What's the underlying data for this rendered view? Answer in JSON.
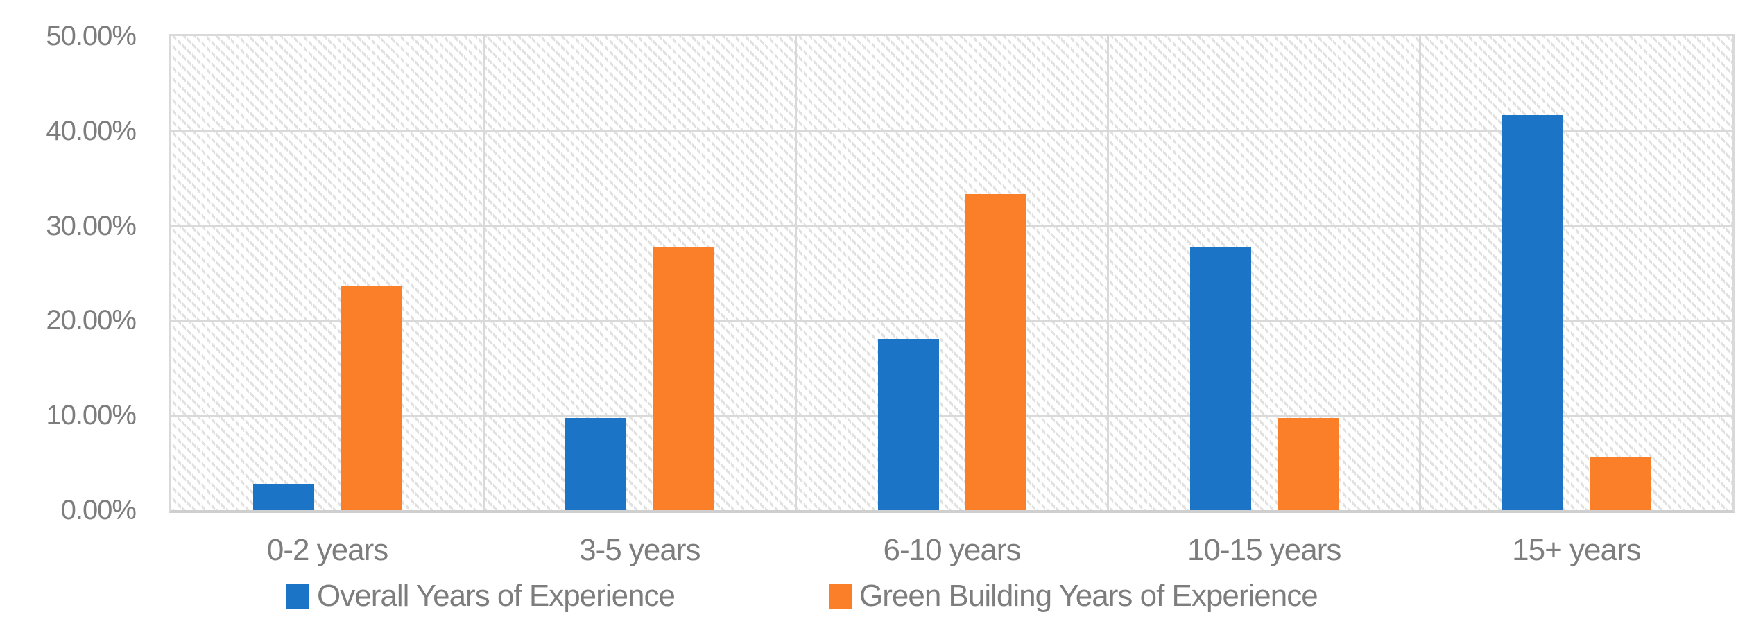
{
  "chart_data": {
    "type": "bar",
    "title": "",
    "xlabel": "",
    "ylabel": "",
    "categories": [
      "0-2 years",
      "3-5 years",
      "6-10 years",
      "10-15 years",
      "15+ years"
    ],
    "series": [
      {
        "name": "Overall Years of Experience",
        "color": "#1B74C5",
        "values": [
          2.78,
          9.72,
          18.06,
          27.78,
          41.67
        ]
      },
      {
        "name": "Green Building Years of Experience",
        "color": "#FB7E28",
        "values": [
          23.61,
          27.78,
          33.33,
          9.72,
          5.56
        ]
      }
    ],
    "value_unit": "percent",
    "ylim": [
      0,
      50
    ],
    "y_tick_step": 10,
    "y_tick_labels": [
      "0.00%",
      "10.00%",
      "20.00%",
      "30.00%",
      "40.00%",
      "50.00%"
    ],
    "grid": true,
    "plot_fill": "diagonal-hatch",
    "legend_position": "bottom"
  },
  "colors": {
    "background": "#FFFFFF",
    "gridline": "#D9D9D9",
    "hatch_line": "#E1E1E1",
    "axis_text": "#7D7D7D",
    "series_overall": "#1B74C5",
    "series_green_building": "#FB7E28"
  }
}
